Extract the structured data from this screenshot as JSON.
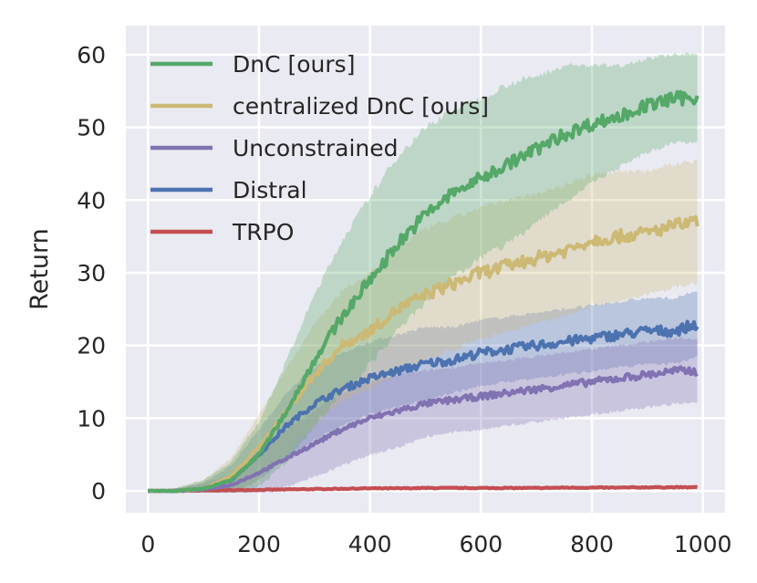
{
  "chart_data": {
    "type": "line",
    "title": "",
    "xlabel": "",
    "ylabel": "Return",
    "xlim": [
      -40,
      1040
    ],
    "ylim": [
      -3,
      64
    ],
    "xticks": [
      0,
      200,
      400,
      600,
      800,
      1000
    ],
    "yticks": [
      0,
      10,
      20,
      30,
      40,
      50,
      60
    ],
    "grid": true,
    "legend_position": "top-left",
    "x": [
      0,
      50,
      100,
      150,
      200,
      250,
      300,
      350,
      400,
      450,
      500,
      550,
      600,
      650,
      700,
      750,
      800,
      850,
      900,
      950,
      990
    ],
    "series": [
      {
        "name": "DnC [ours]",
        "color": "#55a868",
        "values": [
          0,
          0,
          0.3,
          1.5,
          5,
          11,
          18,
          24,
          29,
          34,
          38,
          41,
          43,
          45,
          47,
          49,
          50.5,
          51.5,
          53,
          54,
          54
        ],
        "band": [
          0,
          0.4,
          1.2,
          2.5,
          4.5,
          7,
          9,
          10.5,
          11.5,
          12,
          12,
          11.5,
          11,
          11,
          10,
          9.5,
          8,
          7,
          6.5,
          6,
          6
        ]
      },
      {
        "name": "centralized DnC [ours]",
        "color": "#ccb974",
        "values": [
          0,
          0,
          0.3,
          2,
          6,
          11,
          16,
          20,
          22,
          25,
          27,
          28.5,
          30,
          31,
          32,
          33,
          34.5,
          35,
          35.5,
          36.5,
          37
        ],
        "band": [
          0,
          0.4,
          1.2,
          2.5,
          4.5,
          6,
          7,
          7.5,
          8,
          8.5,
          9,
          9,
          9,
          9,
          9,
          9,
          9,
          9,
          8.5,
          8.5,
          8.5
        ]
      },
      {
        "name": "Unconstrained",
        "color": "#8172b2",
        "values": [
          0,
          0,
          0.2,
          0.8,
          2.5,
          4.5,
          6.5,
          8.5,
          10,
          11,
          12,
          12.5,
          13,
          13.5,
          14,
          14.5,
          15,
          15.5,
          16,
          16.5,
          16.5
        ],
        "band": [
          0,
          0.3,
          0.8,
          1.5,
          3,
          4,
          4.5,
          5,
          5,
          5,
          4.5,
          4.5,
          4.5,
          4.5,
          4.5,
          4.5,
          4.5,
          4.5,
          4.5,
          4.5,
          4.5
        ]
      },
      {
        "name": "Distral",
        "color": "#4c72b0",
        "values": [
          0,
          0,
          0.3,
          1.5,
          5,
          9,
          12,
          14,
          15.5,
          16.5,
          17.5,
          18,
          19,
          19.5,
          20,
          20.5,
          21,
          21.5,
          22,
          22,
          23
        ],
        "band": [
          0,
          0.3,
          0.8,
          2,
          3.5,
          4.5,
          5,
          5,
          5,
          5,
          5,
          4.5,
          4.5,
          4.5,
          4.5,
          4.5,
          4.5,
          4.5,
          4.5,
          4.5,
          4.5
        ]
      },
      {
        "name": "TRPO",
        "color": "#c44e52",
        "values": [
          0,
          0,
          0.05,
          0.1,
          0.15,
          0.2,
          0.25,
          0.3,
          0.35,
          0.35,
          0.4,
          0.4,
          0.4,
          0.4,
          0.4,
          0.45,
          0.45,
          0.45,
          0.5,
          0.5,
          0.5
        ],
        "band": [
          0,
          0,
          0,
          0.05,
          0.05,
          0.05,
          0.05,
          0.05,
          0.05,
          0.05,
          0.05,
          0.05,
          0.05,
          0.05,
          0.05,
          0.05,
          0.05,
          0.05,
          0.05,
          0.05,
          0.05
        ]
      }
    ]
  }
}
